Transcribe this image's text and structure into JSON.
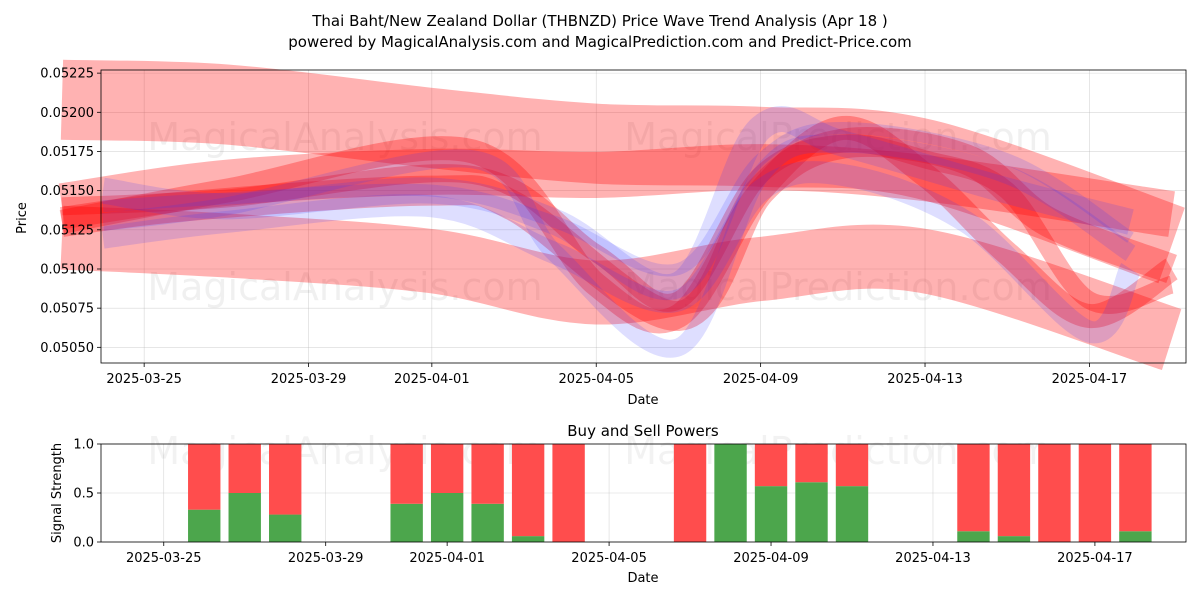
{
  "title_line1": "Thai Baht/New Zealand Dollar (THBNZD) Price Wave Trend Analysis (Apr 18 )",
  "title_line2": "powered by MagicalAnalysis.com and MagicalPrediction.com and Predict-Price.com",
  "watermarks": [
    "MagicalAnalysis.com",
    "MagicalPrediction.com"
  ],
  "colors": {
    "red_band": "#ff0000",
    "blue_band": "#3333ff",
    "buy": "#4ca64c",
    "sell": "#ff4d4d"
  },
  "chart_data": [
    {
      "type": "area",
      "xlabel": "Date",
      "ylabel": "Price",
      "x_ticks": [
        "2025-03-25",
        "2025-03-29",
        "2025-04-01",
        "2025-04-05",
        "2025-04-09",
        "2025-04-13",
        "2025-04-17"
      ],
      "y_ticks": [
        "0.05050",
        "0.05075",
        "0.05100",
        "0.05125",
        "0.05150",
        "0.05175",
        "0.05200",
        "0.05225"
      ],
      "xlim": [
        "2025-03-23",
        "2025-04-19"
      ],
      "ylim": [
        0.0504,
        0.05227
      ],
      "grid": true,
      "red_bands": [
        {
          "name": "upper",
          "points": [
            [
              "2025-03-23",
              0.05208
            ],
            [
              "2025-03-27",
              0.05205
            ],
            [
              "2025-04-01",
              0.0519
            ],
            [
              "2025-04-05",
              0.0518
            ],
            [
              "2025-04-09",
              0.05178
            ],
            [
              "2025-04-13",
              0.0517
            ],
            [
              "2025-04-19",
              0.05115
            ]
          ]
        },
        {
          "name": "mid",
          "points": [
            [
              "2025-03-23",
              0.0514
            ],
            [
              "2025-03-27",
              0.05155
            ],
            [
              "2025-04-01",
              0.05162
            ],
            [
              "2025-04-05",
              0.0516
            ],
            [
              "2025-04-09",
              0.05165
            ],
            [
              "2025-04-13",
              0.05158
            ],
            [
              "2025-04-19",
              0.05135
            ]
          ]
        },
        {
          "name": "lower",
          "points": [
            [
              "2025-03-23",
              0.0512
            ],
            [
              "2025-03-27",
              0.05115
            ],
            [
              "2025-04-01",
              0.05105
            ],
            [
              "2025-04-05",
              0.05085
            ],
            [
              "2025-04-09",
              0.051
            ],
            [
              "2025-04-13",
              0.05105
            ],
            [
              "2025-04-19",
              0.05055
            ]
          ]
        },
        {
          "name": "wave1",
          "points": [
            [
              "2025-03-23",
              0.0513
            ],
            [
              "2025-03-27",
              0.0515
            ],
            [
              "2025-04-02",
              0.05175
            ],
            [
              "2025-04-05",
              0.0509
            ],
            [
              "2025-04-07",
              0.0507
            ],
            [
              "2025-04-09",
              0.0515
            ],
            [
              "2025-04-11",
              0.0519
            ],
            [
              "2025-04-13",
              0.0516
            ],
            [
              "2025-04-15",
              0.0511
            ],
            [
              "2025-04-17",
              0.0507
            ],
            [
              "2025-04-19",
              0.051
            ]
          ]
        },
        {
          "name": "wave2",
          "points": [
            [
              "2025-03-23",
              0.0514
            ],
            [
              "2025-03-27",
              0.05145
            ],
            [
              "2025-04-02",
              0.0516
            ],
            [
              "2025-04-05",
              0.0511
            ],
            [
              "2025-04-07",
              0.0508
            ],
            [
              "2025-04-09",
              0.0516
            ],
            [
              "2025-04-11",
              0.0518
            ],
            [
              "2025-04-13",
              0.0517
            ],
            [
              "2025-04-15",
              0.0515
            ],
            [
              "2025-04-17",
              0.0508
            ],
            [
              "2025-04-19",
              0.0509
            ]
          ]
        },
        {
          "name": "wave3",
          "points": [
            [
              "2025-03-23",
              0.0513
            ],
            [
              "2025-03-26",
              0.0514
            ],
            [
              "2025-04-01",
              0.0515
            ],
            [
              "2025-04-03",
              0.0514
            ],
            [
              "2025-04-07",
              0.0507
            ],
            [
              "2025-04-09",
              0.0515
            ],
            [
              "2025-04-11",
              0.0518
            ],
            [
              "2025-04-14",
              0.0517
            ],
            [
              "2025-04-16",
              0.0513
            ],
            [
              "2025-04-19",
              0.051
            ]
          ]
        }
      ],
      "blue_bands": [
        {
          "name": "b1",
          "points": [
            [
              "2025-03-24",
              0.0515
            ],
            [
              "2025-03-27",
              0.0514
            ],
            [
              "2025-04-01",
              0.0515
            ],
            [
              "2025-04-04",
              0.0513
            ],
            [
              "2025-04-07",
              0.0509
            ],
            [
              "2025-04-09",
              0.0519
            ],
            [
              "2025-04-11",
              0.0518
            ],
            [
              "2025-04-15",
              0.0515
            ],
            [
              "2025-04-18",
              0.0513
            ]
          ]
        },
        {
          "name": "b2",
          "points": [
            [
              "2025-03-24",
              0.0513
            ],
            [
              "2025-03-27",
              0.0514
            ],
            [
              "2025-04-02",
              0.0517
            ],
            [
              "2025-04-04",
              0.0511
            ],
            [
              "2025-04-07",
              0.0505
            ],
            [
              "2025-04-09",
              0.0516
            ],
            [
              "2025-04-11",
              0.0518
            ],
            [
              "2025-04-15",
              0.0516
            ],
            [
              "2025-04-18",
              0.0511
            ]
          ]
        },
        {
          "name": "b3",
          "points": [
            [
              "2025-03-24",
              0.0514
            ],
            [
              "2025-03-27",
              0.05145
            ],
            [
              "2025-04-01",
              0.0515
            ],
            [
              "2025-04-04",
              0.0513
            ],
            [
              "2025-04-07",
              0.051
            ],
            [
              "2025-04-09",
              0.0517
            ],
            [
              "2025-04-11",
              0.0519
            ],
            [
              "2025-04-15",
              0.0517
            ],
            [
              "2025-04-18",
              0.0512
            ]
          ]
        },
        {
          "name": "b4",
          "points": [
            [
              "2025-03-24",
              0.0512
            ],
            [
              "2025-03-27",
              0.0513
            ],
            [
              "2025-04-01",
              0.0514
            ],
            [
              "2025-04-04",
              0.0511
            ],
            [
              "2025-04-07",
              0.0508
            ],
            [
              "2025-04-09",
              0.0515
            ],
            [
              "2025-04-11",
              0.0516
            ],
            [
              "2025-04-14",
              0.0513
            ],
            [
              "2025-04-17",
              0.0506
            ],
            [
              "2025-04-18",
              0.051
            ]
          ]
        }
      ]
    },
    {
      "type": "bar",
      "title": "Buy and Sell Powers",
      "xlabel": "Date",
      "ylabel": "Signal Strength",
      "y_ticks": [
        "0.0",
        "0.5",
        "1.0"
      ],
      "ylim": [
        0,
        1
      ],
      "xlim": [
        "2025-03-24",
        "2025-04-19"
      ],
      "x_ticks": [
        "2025-03-25",
        "2025-03-29",
        "2025-04-01",
        "2025-04-05",
        "2025-04-09",
        "2025-04-13",
        "2025-04-17"
      ],
      "categories": [
        "2025-03-26",
        "2025-03-27",
        "2025-03-28",
        "2025-03-31",
        "2025-04-01",
        "2025-04-02",
        "2025-04-03",
        "2025-04-04",
        "2025-04-07",
        "2025-04-08",
        "2025-04-09",
        "2025-04-10",
        "2025-04-11",
        "2025-04-14",
        "2025-04-15",
        "2025-04-16",
        "2025-04-17",
        "2025-04-18"
      ],
      "buy": [
        0.33,
        0.5,
        0.28,
        0.39,
        0.5,
        0.39,
        0.06,
        0.0,
        0.0,
        1.0,
        0.57,
        0.61,
        0.57,
        0.11,
        0.06,
        0.0,
        0.0,
        0.11
      ],
      "sell": [
        0.67,
        0.5,
        0.72,
        0.61,
        0.5,
        0.61,
        0.94,
        1.0,
        1.0,
        0.0,
        0.43,
        0.39,
        0.43,
        0.89,
        0.94,
        1.0,
        1.0,
        0.89
      ]
    }
  ]
}
